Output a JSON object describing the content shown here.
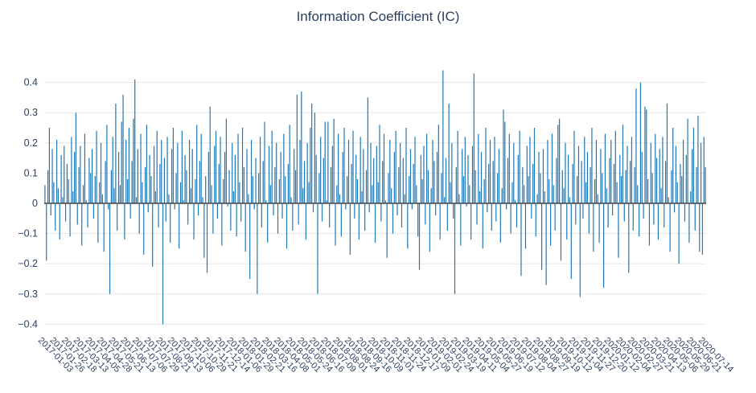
{
  "chart_data": {
    "type": "bar",
    "title": "Information Coefficient (IC)",
    "xlabel": "",
    "ylabel": "",
    "ylim": [
      -0.42,
      0.447
    ],
    "yticks": [
      -0.4,
      -0.3,
      -0.2,
      -0.1,
      0,
      0.1,
      0.2,
      0.3,
      0.4
    ],
    "grid": "horizontal",
    "legend": "none",
    "bar_color": "#1f77b4",
    "grid_color": "#e6e6e6",
    "zero_line_color": "#444444",
    "text_color": "#2a3f5f",
    "background": "#ffffff",
    "tick_every": 8,
    "x_tick_labels": [
      "2017-01-03",
      "2017-01-26",
      "2017-02-18",
      "2017-03-13",
      "2017-04-05",
      "2017-04-28",
      "2017-05-21",
      "2017-06-13",
      "2017-07-06",
      "2017-07-29",
      "2017-08-21",
      "2017-09-13",
      "2017-10-06",
      "2017-10-29",
      "2017-11-21",
      "2017-12-14",
      "2018-01-06",
      "2018-01-29",
      "2018-02-21",
      "2018-03-16",
      "2018-04-08",
      "2018-05-01",
      "2018-05-24",
      "2018-06-16",
      "2018-07-09",
      "2018-08-01",
      "2018-08-24",
      "2018-09-16",
      "2018-10-09",
      "2018-11-01",
      "2018-11-24",
      "2018-12-17",
      "2019-01-09",
      "2019-02-01",
      "2019-02-24",
      "2019-03-19",
      "2019-04-11",
      "2019-05-04",
      "2019-05-27",
      "2019-06-19",
      "2019-07-12",
      "2019-08-04",
      "2019-08-27",
      "2019-09-19",
      "2019-10-12",
      "2019-11-04",
      "2019-11-27",
      "2019-12-20",
      "2020-01-12",
      "2020-02-04",
      "2020-02-27",
      "2020-03-21",
      "2020-04-13",
      "2020-05-06",
      "2020-05-29",
      "2020-06-21",
      "2020-07-14"
    ],
    "values": [
      0.06,
      -0.19,
      0.11,
      0.25,
      -0.04,
      0.18,
      0.07,
      -0.09,
      0.21,
      0.05,
      -0.12,
      0.16,
      0.02,
      0.19,
      -0.06,
      0.13,
      0.08,
      -0.11,
      0.22,
      0.04,
      0.17,
      0.3,
      -0.07,
      0.12,
      0.19,
      -0.14,
      0.06,
      0.23,
      0.01,
      -0.08,
      0.15,
      0.1,
      0.18,
      -0.05,
      0.09,
      0.24,
      -0.13,
      0.07,
      0.2,
      0.03,
      -0.16,
      0.14,
      0.26,
      -0.02,
      -0.3,
      0.11,
      0.22,
      0.05,
      0.33,
      -0.09,
      0.17,
      0.06,
      0.27,
      0.36,
      -0.12,
      0.21,
      0.08,
      0.25,
      -0.05,
      0.14,
      0.28,
      0.41,
      0.02,
      0.18,
      -0.1,
      0.23,
      0.07,
      -0.17,
      0.12,
      0.26,
      -0.03,
      0.16,
      0.09,
      -0.21,
      0.19,
      0.04,
      0.24,
      -0.08,
      0.13,
      0.21,
      -0.4,
      0.15,
      -0.06,
      0.22,
      0.03,
      -0.13,
      0.18,
      0.25,
      -0.02,
      0.1,
      0.2,
      -0.15,
      0.07,
      0.24,
      0.01,
      0.16,
      0.11,
      -0.07,
      0.21,
      0.05,
      0.18,
      -0.12,
      0.08,
      0.26,
      -0.04,
      0.14,
      0.23,
      0.02,
      -0.18,
      0.09,
      -0.23,
      0.17,
      0.32,
      0.06,
      -0.1,
      0.19,
      0.24,
      -0.05,
      0.13,
      0.22,
      -0.14,
      0.08,
      0.17,
      0.28,
      -0.01,
      0.11,
      -0.09,
      0.2,
      0.04,
      0.16,
      -0.11,
      0.23,
      0.07,
      -0.06,
      0.25,
      0.12,
      -0.16,
      0.18,
      0.03,
      -0.25,
      0.21,
      0.09,
      -0.02,
      0.15,
      -0.3,
      0.1,
      0.22,
      -0.08,
      0.14,
      0.27,
      0.01,
      -0.13,
      0.19,
      0.06,
      0.24,
      -0.04,
      0.12,
      0.2,
      -0.1,
      0.08,
      0.17,
      -0.05,
      0.23,
      0.09,
      -0.15,
      0.13,
      0.26,
      0.02,
      -0.09,
      0.18,
      0.11,
      0.36,
      -0.07,
      0.21,
      0.37,
      0.05,
      0.14,
      -0.12,
      0.2,
      0.07,
      0.25,
      0.33,
      -0.03,
      0.3,
      0.16,
      -0.3,
      0.1,
      0.22,
      -0.06,
      0.15,
      0.27,
      0.01,
      0.27,
      -0.08,
      0.12,
      0.19,
      0.28,
      -0.14,
      0.06,
      0.23,
      0.03,
      -0.11,
      0.17,
      0.25,
      -0.02,
      0.09,
      0.21,
      -0.17,
      0.13,
      0.24,
      -0.05,
      0.16,
      0.08,
      -0.12,
      0.22,
      0.04,
      0.18,
      -0.09,
      0.11,
      0.35,
      -0.03,
      0.2,
      0.06,
      0.15,
      -0.13,
      0.19,
      0.07,
      0.26,
      -0.06,
      0.14,
      0.23,
      0.01,
      -0.18,
      0.1,
      0.21,
      0.05,
      -0.1,
      0.17,
      0.24,
      -0.04,
      0.12,
      0.2,
      -0.08,
      0.15,
      0.03,
      0.25,
      -0.15,
      0.09,
      0.18,
      -0.02,
      0.13,
      0.22,
      0.06,
      -0.11,
      -0.22,
      0.16,
      0.08,
      0.19,
      -0.07,
      0.23,
      0.11,
      -0.16,
      0.05,
      0.21,
      0.14,
      -0.04,
      0.17,
      0.26,
      -0.12,
      0.1,
      0.44,
      0.02,
      0.15,
      -0.09,
      0.33,
      0.07,
      0.2,
      -0.05,
      -0.3,
      0.12,
      0.24,
      0.03,
      -0.14,
      0.18,
      0.09,
      0.22,
      -0.01,
      0.16,
      0.06,
      -0.12,
      0.19,
      0.43,
      0.11,
      -0.07,
      0.23,
      0.04,
      0.17,
      -0.15,
      0.08,
      0.25,
      -0.03,
      0.13,
      0.21,
      -0.09,
      0.14,
      0.22,
      -0.06,
      0.1,
      0.18,
      -0.13,
      0.05,
      0.31,
      0.27,
      -0.02,
      0.15,
      0.23,
      -0.1,
      0.07,
      0.2,
      0.01,
      -0.08,
      0.16,
      0.24,
      -0.24,
      0.12,
      0.06,
      -0.15,
      0.19,
      0.09,
      0.22,
      -0.05,
      0.13,
      0.25,
      -0.11,
      0.03,
      0.17,
      0.1,
      -0.22,
      0.18,
      0.04,
      -0.27,
      0.21,
      0.08,
      -0.14,
      0.23,
      0.06,
      -0.09,
      0.15,
      0.26,
      0.28,
      -0.19,
      0.11,
      0.05,
      0.2,
      -0.12,
      0.16,
      0.02,
      -0.25,
      0.13,
      0.24,
      -0.07,
      0.09,
      0.19,
      -0.31,
      0.14,
      -0.05,
      0.22,
      0.07,
      0.17,
      -0.1,
      0.12,
      0.25,
      -0.16,
      0.08,
      0.21,
      0.03,
      -0.13,
      0.18,
      0.1,
      -0.28,
      0.23,
      0.05,
      -0.08,
      0.15,
      0.21,
      -0.04,
      0.13,
      0.24,
      0.07,
      -0.18,
      0.16,
      0.09,
      0.26,
      -0.06,
      0.11,
      0.19,
      -0.23,
      0.14,
      0.22,
      -0.09,
      0.12,
      0.38,
      0.06,
      -0.11,
      0.4,
      0.17,
      -0.05,
      0.32,
      0.31,
      0.08,
      -0.14,
      0.2,
      0.1,
      -0.07,
      0.23,
      0.15,
      -0.12,
      0.18,
      0.05,
      0.22,
      -0.08,
      0.14,
      0.33,
      0.02,
      -0.16,
      0.11,
      0.25,
      -0.03,
      0.19,
      0.07,
      -0.2,
      0.13,
      0.09,
      0.21,
      -0.06,
      0.16,
      0.28,
      -0.13,
      0.04,
      0.18,
      0.25,
      -0.09,
      0.12,
      0.29,
      -0.16,
      0.2,
      -0.17,
      0.22,
      0.12
    ]
  }
}
